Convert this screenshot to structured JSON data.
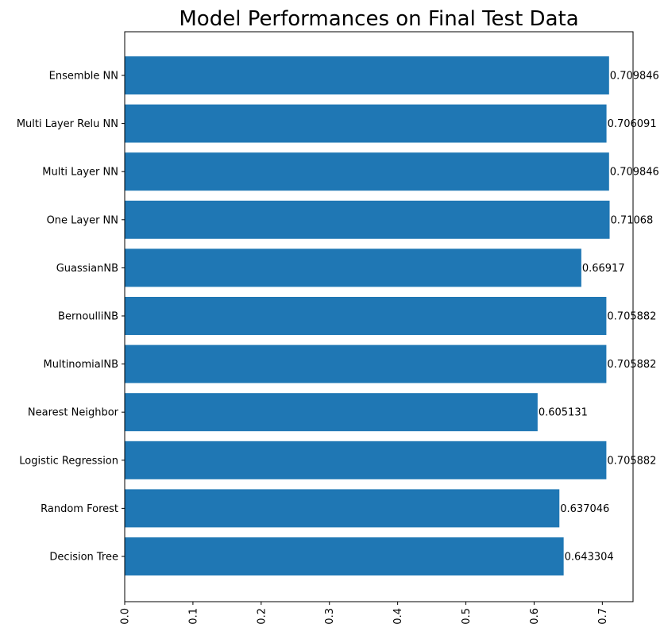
{
  "chart_data": {
    "type": "bar",
    "orientation": "horizontal",
    "title": "Model Performances on Final Test Data",
    "xlabel": "",
    "ylabel": "",
    "xlim": [
      0,
      0.745
    ],
    "x_ticks": [
      0.0,
      0.1,
      0.2,
      0.3,
      0.4,
      0.5,
      0.6,
      0.7
    ],
    "x_tick_labels": [
      "0.0",
      "0.1",
      "0.2",
      "0.3",
      "0.4",
      "0.5",
      "0.6",
      "0.7"
    ],
    "x_tick_label_rotation": "vertical",
    "grid": false,
    "bar_color": "#1f77b4",
    "categories": [
      "Decision Tree",
      "Random Forest",
      "Logistic Regression",
      "Nearest Neighbor",
      "MultinomialNB",
      "BernoulliNB",
      "GuassianNB",
      "One Layer NN",
      "Multi Layer NN",
      "Multi Layer Relu NN",
      "Ensemble NN"
    ],
    "values": [
      0.643304,
      0.637046,
      0.705882,
      0.605131,
      0.705882,
      0.705882,
      0.66917,
      0.71068,
      0.709846,
      0.706091,
      0.709846
    ],
    "value_labels": [
      "0.643304",
      "0.637046",
      "0.705882",
      "0.605131",
      "0.705882",
      "0.705882",
      "0.66917",
      "0.71068",
      "0.709846",
      "0.706091",
      "0.709846"
    ]
  }
}
